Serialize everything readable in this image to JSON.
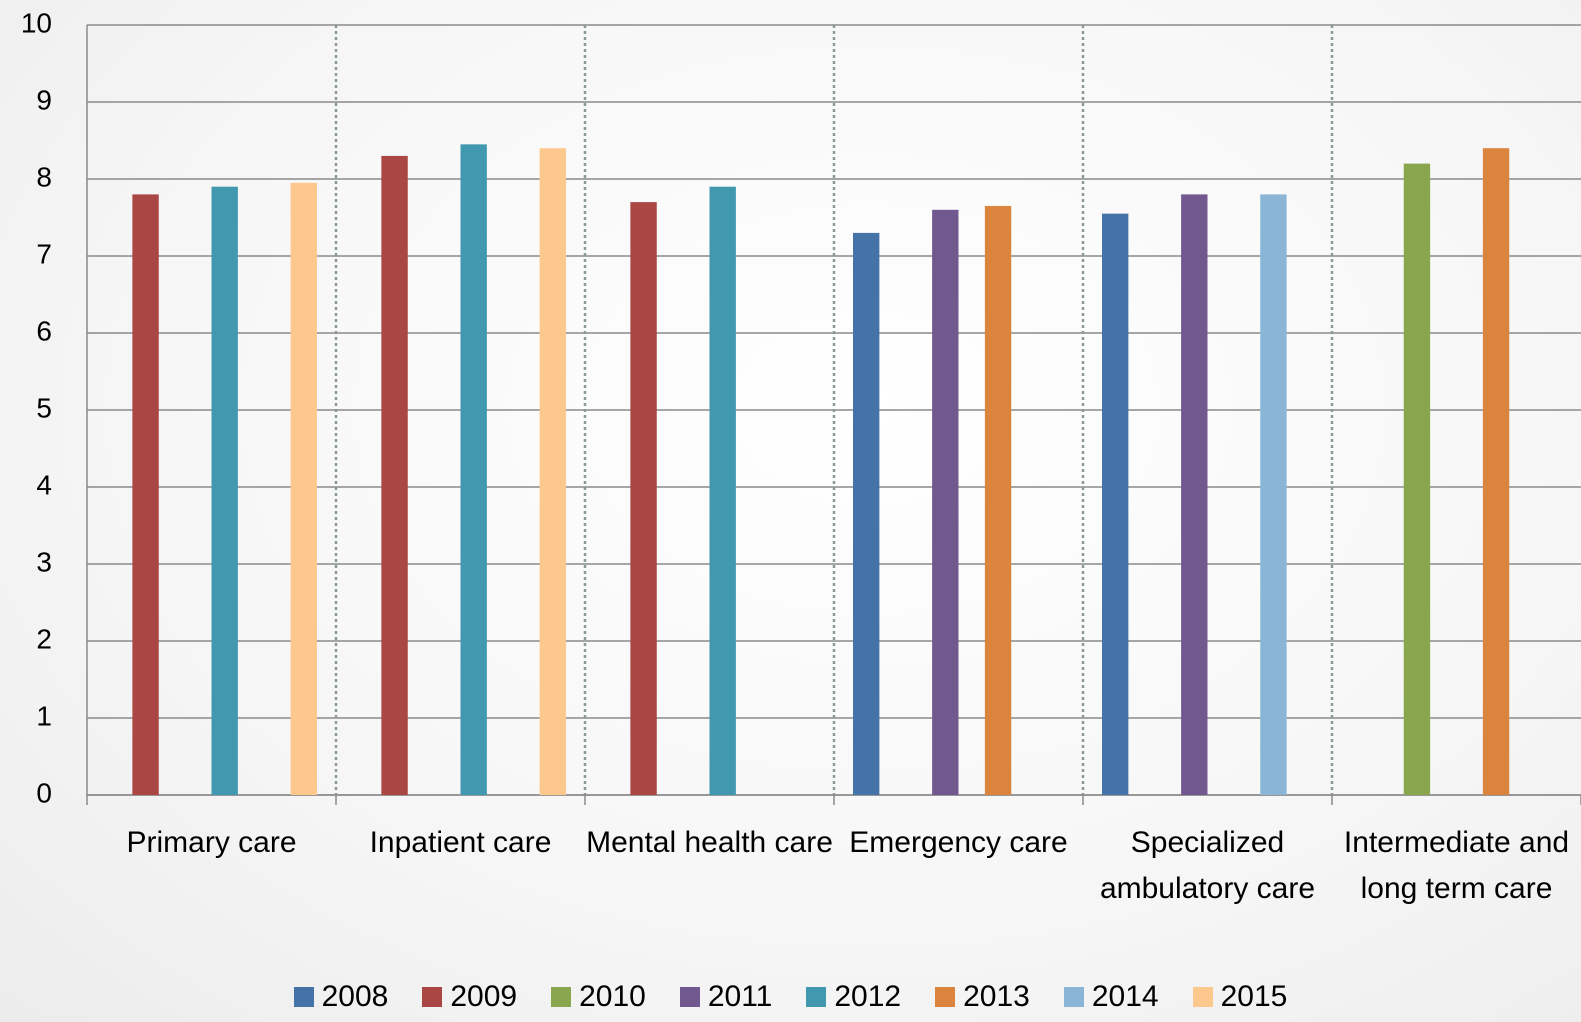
{
  "chart_data": {
    "type": "bar",
    "categories": [
      "Primary care",
      "Inpatient care",
      "Mental health care",
      "Emergency care",
      "Specialized ambulatory care",
      "Intermediate and long term care"
    ],
    "series": [
      {
        "name": "2008",
        "color": "#4572a7",
        "values": [
          null,
          null,
          null,
          7.3,
          7.55,
          null
        ]
      },
      {
        "name": "2009",
        "color": "#aa4643",
        "values": [
          7.8,
          8.3,
          7.7,
          null,
          null,
          null
        ]
      },
      {
        "name": "2010",
        "color": "#89a54e",
        "values": [
          null,
          null,
          null,
          null,
          null,
          8.2
        ]
      },
      {
        "name": "2011",
        "color": "#71588f",
        "values": [
          null,
          null,
          null,
          7.6,
          7.8,
          null
        ]
      },
      {
        "name": "2012",
        "color": "#4198af",
        "values": [
          7.9,
          8.45,
          7.9,
          null,
          null,
          null
        ]
      },
      {
        "name": "2013",
        "color": "#db843d",
        "values": [
          null,
          null,
          null,
          7.65,
          null,
          8.4
        ]
      },
      {
        "name": "2014",
        "color": "#8bb5d6",
        "values": [
          null,
          null,
          null,
          null,
          7.8,
          null
        ]
      },
      {
        "name": "2015",
        "color": "#fcc88e",
        "values": [
          7.95,
          8.4,
          null,
          null,
          null,
          null
        ]
      }
    ],
    "ylim": [
      0,
      10
    ],
    "yticks": [
      0,
      1,
      2,
      3,
      4,
      5,
      6,
      7,
      8,
      9,
      10
    ],
    "grid": true,
    "legend": "bottom"
  }
}
